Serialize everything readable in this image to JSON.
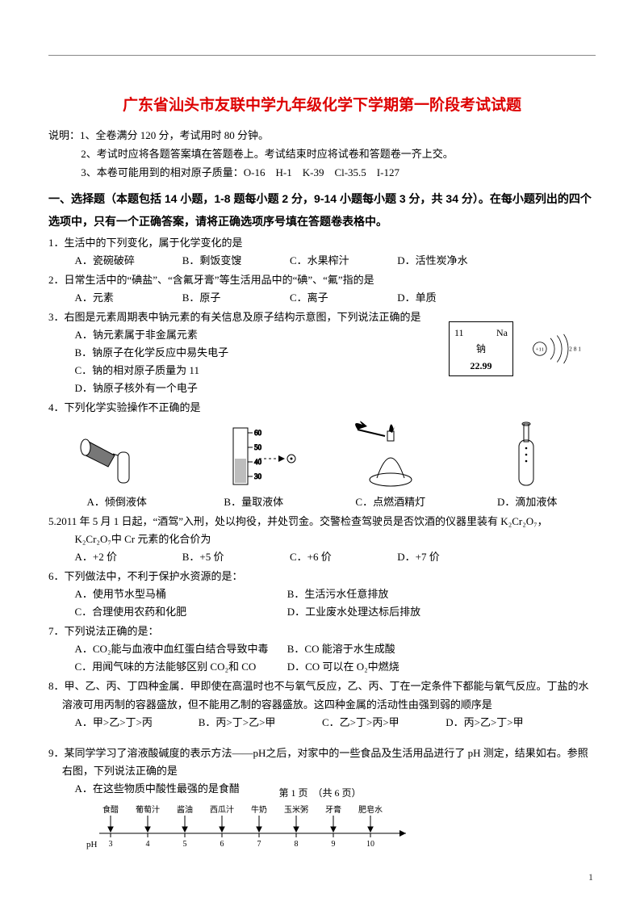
{
  "title": "广东省汕头市友联中学九年级化学下学期第一阶段考试试题",
  "instructions": {
    "prefix": "说明：",
    "lines": [
      "1、全卷满分 120 分，考试用时 80 分钟。",
      "2、考试时应将各题答案填在答题卷上。考试结束时应将试卷和答题卷一齐上交。",
      "3、本卷可能用到的相对原子质量：O-16　H-1　K-39　Cl-35.5　I-127"
    ]
  },
  "section1_head": "一、选择题（本题包括 14 小题，1-8 题每小题 2 分，9-14 小题每小题 3 分，共 34 分）。在每小题列出的四个选项中，只有一个正确答案，请将正确选项序号填在答题卷表格中。",
  "q1": {
    "stem": "1．生活中的下列变化，属于化学变化的是",
    "a": "A．瓷碗破碎",
    "b": "B．剩饭变馊",
    "c": "C．水果榨汁",
    "d": "D．活性炭净水"
  },
  "q2": {
    "stem": "2．日常生活中的“碘盐”、“含氟牙膏”等生活用品中的“碘”、“氟”指的是",
    "a": "A．元素",
    "b": "B．原子",
    "c": "C．离子",
    "d": "D．单质"
  },
  "q3": {
    "stem": "3．右图是元素周期表中钠元素的有关信息及原子结构示意图，下列说法正确的是",
    "a": "A．钠元素属于非金属元素",
    "b": "B．钠原子在化学反应中易失电子",
    "c": "C．钠的相对原子质量为 11",
    "d": "D．钠原子核外有一个电子",
    "element": {
      "num": "11",
      "sym": "Na",
      "name": "钠",
      "mass": "22.99",
      "shells": "2 8 1",
      "nucleus": "+11"
    }
  },
  "q4": {
    "stem": "4．下列化学实验操作不正确的是",
    "a": "A．倾倒液体",
    "b": "B．量取液体",
    "c": "C．点燃酒精灯",
    "d": "D．滴加液体"
  },
  "q5": {
    "stem": "5.2011 年 5 月 1 日起，“酒驾”入刑，处以拘役，并处罚金。交警检查驾驶员是否饮酒的仪器里装有 K₂Cr₂O₇，",
    "sub": "K₂Cr₂O₇中 Cr 元素的化合价为",
    "a": "A．+2 价",
    "b": "B．+5 价",
    "c": "C．+6 价",
    "d": "D．+7 价"
  },
  "q6": {
    "stem": "6．下列做法中，不利于保护水资源的是：",
    "a": "A．使用节水型马桶",
    "b": "B．生活污水任意排放",
    "c": "C．合理使用农药和化肥",
    "d": "D．工业废水处理达标后排放"
  },
  "q7": {
    "stem": "7．下列说法正确的是：",
    "a": "A．CO₂能与血液中血红蛋白结合导致中毒",
    "b": "B．CO 能溶于水生成酸",
    "c": "C．用闻气味的方法能够区别 CO₂和 CO",
    "d": "D．CO 可以在 O₂中燃烧"
  },
  "q8": {
    "stem": "8．甲、乙、丙、丁四种金属．甲即使在高温时也不与氧气反应，乙、丙、丁在一定条件下都能与氧气反应。丁盐的水溶液可用丙制的容器盛放，但不能用乙制的容器盛放。这四种金属的活动性由强到弱的顺序是",
    "a": "A．甲>乙>丁>丙",
    "b": "B．丙>丁>乙>甲",
    "c": "C．乙>丁>丙>甲",
    "d": "D．丙>乙>丁>甲"
  },
  "q9": {
    "stem": "9．某同学学习了溶液酸碱度的表示方法——pH之后，对家中的一些食品及生活用品进行了 pH 测定，结果如右。参照右图，下列说法正确的是",
    "a": "A．在这些物质中酸性最强的是食醋",
    "ph": {
      "labels_top": [
        "食醋",
        "葡萄汁",
        "酱油",
        "西瓜汁",
        "牛奶",
        "玉米粥",
        "牙膏",
        "肥皂水"
      ],
      "axis": "pH",
      "ticks": [
        "3",
        "4",
        "5",
        "6",
        "7",
        "8",
        "9",
        "10"
      ]
    }
  },
  "footer_hint": "第 1 页　（共 6 页）",
  "page_num": "1",
  "colors": {
    "title": "#d00",
    "text": "#000000",
    "rule": "#888888"
  }
}
